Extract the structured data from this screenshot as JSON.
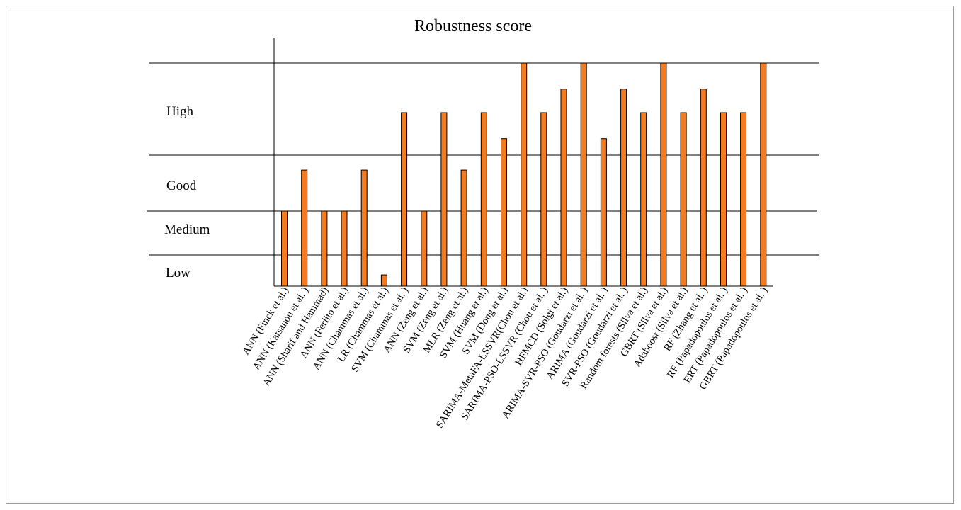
{
  "chart_data": {
    "type": "bar",
    "title": "Robustness score",
    "xlabel": "",
    "ylabel": "",
    "y_levels": [
      "Low",
      "Medium",
      "Good",
      "High"
    ],
    "bar_color": "#f47c20",
    "bar_edge_color": "#000000",
    "grid": "horizontal lines at level boundaries",
    "categories": [
      "ANN (Finck et al.)",
      "ANN (Katsanou et al. )",
      "ANN (Sharif and Hammad)",
      "ANN (Ferlito et al.)",
      "ANN (Chammas et al.)",
      "LR (Chammas et al.)",
      "SVM (Chammas et al. )",
      "ANN (Zeng et al.)",
      "SVM (Zeng et al.)",
      "MLR (Zeng et al.)",
      "SVM (Huang et al.)",
      "SVM (Dong et al.)",
      "SARIMA-MetaFA-LSSVR(Chou et al.)",
      "SARIMA-PSO-LSSVR (Chou et al. )",
      "HFMCD (Solgi et al.)",
      "ARIMA-SVR-PSO (Goudarzi et al. )",
      "ARIMA (Goudarzi et al. )",
      "SVR-PSO (Goudarzi et al. )",
      "Random forests (Silva et al.)",
      "GBRT (Silva et al.)",
      "Adaboost (Silva et al.)",
      "RF (Zhang et al. )",
      "RF (Papadopoulos et al. )",
      "ERT (Papadopoulos et al. )",
      "GBRT (Papadopoulos et al. )"
    ],
    "values": [
      1.0,
      1.55,
      1.0,
      1.0,
      1.55,
      0.15,
      2.65,
      1.0,
      2.65,
      1.55,
      2.65,
      2.1,
      3.7,
      2.65,
      3.15,
      3.7,
      2.1,
      3.15,
      2.65,
      3.7,
      2.65,
      3.15,
      2.65,
      2.65,
      3.7
    ],
    "ylim": [
      0,
      3.7
    ]
  }
}
